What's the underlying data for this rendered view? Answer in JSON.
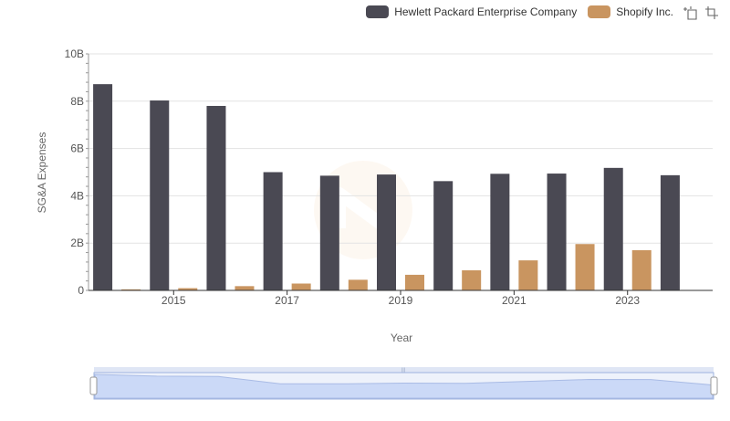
{
  "chart_data": {
    "type": "bar",
    "title": "",
    "xlabel": "Year",
    "ylabel": "SG&A Expenses",
    "categories": [
      "2014",
      "2015",
      "2016",
      "2017",
      "2018",
      "2019",
      "2020",
      "2021",
      "2022",
      "2023",
      "2024"
    ],
    "x_tick_labels": [
      "2015",
      "2017",
      "2019",
      "2021",
      "2023"
    ],
    "y_tick_labels": [
      "0",
      "2B",
      "4B",
      "6B",
      "8B",
      "10B"
    ],
    "ylim": [
      0,
      10000000000
    ],
    "y_ticks": [
      0,
      2000000000,
      4000000000,
      6000000000,
      8000000000,
      10000000000
    ],
    "grid": true,
    "legend_position": "top-right",
    "series": [
      {
        "name": "Hewlett Packard Enterprise Company",
        "color": "#4a4953",
        "values": [
          8720000000,
          8030000000,
          7800000000,
          5000000000,
          4850000000,
          4900000000,
          4620000000,
          4930000000,
          4940000000,
          5180000000,
          4870000000
        ]
      },
      {
        "name": "Shopify Inc.",
        "color": "#c99560",
        "values": [
          45000000,
          95000000,
          180000000,
          290000000,
          450000000,
          660000000,
          850000000,
          1270000000,
          1960000000,
          1700000000,
          null
        ]
      }
    ]
  },
  "legend": {
    "items": [
      {
        "label": "Hewlett Packard Enterprise Company",
        "color": "#4a4953"
      },
      {
        "label": "Shopify Inc.",
        "color": "#c99560"
      }
    ]
  },
  "toolbar": {
    "icons": [
      "zoom-select-icon",
      "zoom-reset-icon"
    ]
  },
  "colors": {
    "grid": "#e3e3e3",
    "axis": "#333333",
    "slider_fill": "#d6e2fb",
    "slider_border": "#aebfe6"
  }
}
